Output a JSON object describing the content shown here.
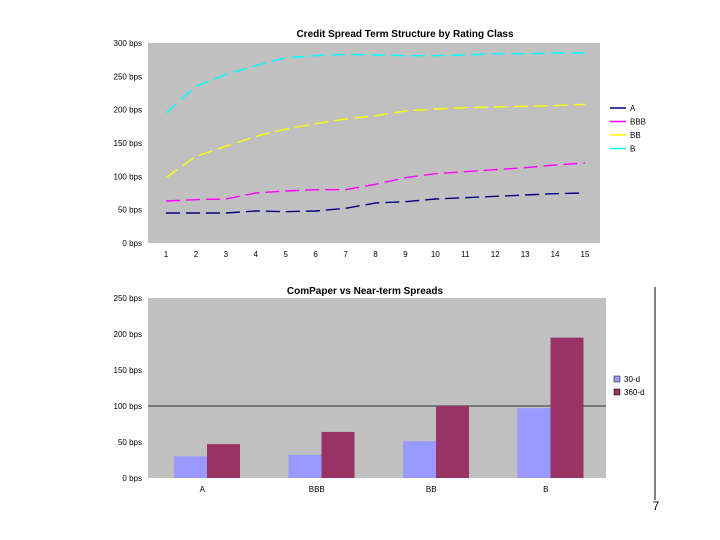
{
  "chart_data": [
    {
      "type": "line",
      "title": "Credit Spread Term Structure by Rating Class",
      "xlabel": "",
      "ylabel": "",
      "categories": [
        "1",
        "2",
        "3",
        "4",
        "5",
        "6",
        "7",
        "8",
        "9",
        "10",
        "11",
        "12",
        "13",
        "14",
        "15"
      ],
      "ylim": [
        0,
        300
      ],
      "yticks": [
        "0 bps",
        "50 bps",
        "100 bps",
        "150 bps",
        "200 bps",
        "250 bps",
        "300 bps"
      ],
      "ytick_values": [
        0,
        50,
        100,
        150,
        200,
        250,
        300
      ],
      "legend_position": "right",
      "series": [
        {
          "name": "A",
          "color": "#000080",
          "dash": "dashed",
          "values": [
            45,
            45,
            45,
            48,
            47,
            48,
            52,
            60,
            62,
            66,
            68,
            70,
            72,
            74,
            75
          ]
        },
        {
          "name": "BBB",
          "color": "#ff00ff",
          "dash": "dashed",
          "values": [
            63,
            65,
            66,
            75,
            78,
            80,
            80,
            88,
            98,
            104,
            107,
            110,
            113,
            117,
            120
          ]
        },
        {
          "name": "BB",
          "color": "#ffff00",
          "dash": "dashed",
          "values": [
            98,
            130,
            145,
            160,
            171,
            179,
            186,
            191,
            198,
            201,
            203,
            204,
            205,
            206,
            208
          ]
        },
        {
          "name": "B",
          "color": "#00ffff",
          "dash": "dashed",
          "values": [
            195,
            235,
            253,
            266,
            278,
            281,
            283,
            282,
            281,
            281,
            282,
            284,
            284,
            285,
            285
          ]
        }
      ]
    },
    {
      "type": "bar",
      "title": "ComPaper vs Near-term Spreads",
      "xlabel": "",
      "ylabel": "",
      "categories": [
        "A",
        "BBB",
        "BB",
        "B"
      ],
      "ylim": [
        0,
        250
      ],
      "yticks": [
        "0 bps",
        "50 bps",
        "100 bps",
        "150 bps",
        "200 bps",
        "250 bps"
      ],
      "ytick_values": [
        0,
        50,
        100,
        150,
        200,
        250
      ],
      "legend_position": "right",
      "series": [
        {
          "name": "30-d",
          "color": "#9999ff",
          "values": [
            30,
            32,
            51,
            97
          ]
        },
        {
          "name": "360-d",
          "color": "#993366",
          "values": [
            47,
            64,
            100,
            195
          ]
        }
      ]
    }
  ],
  "page_number": "7"
}
